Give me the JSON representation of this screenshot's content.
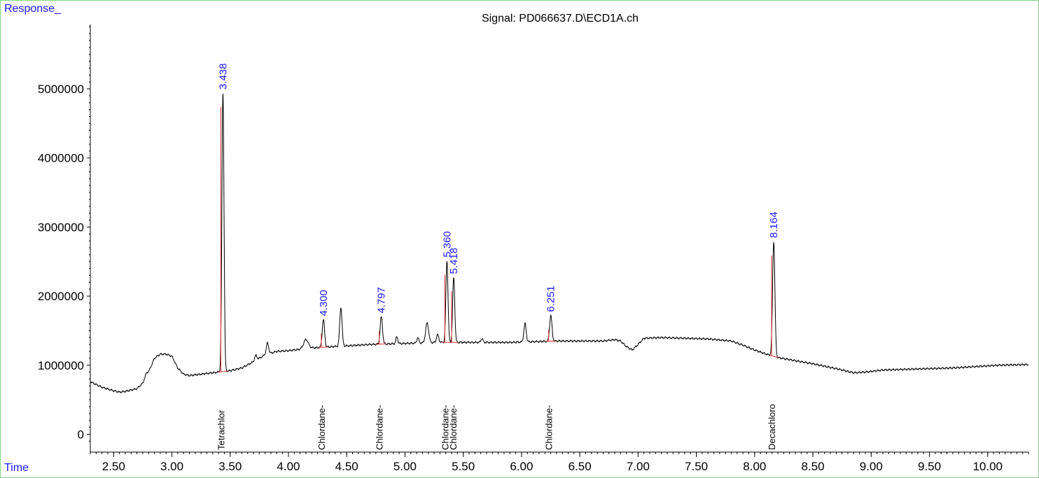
{
  "chart_data": {
    "type": "line",
    "title": "Signal: PD066637.D\\ECD1A.ch",
    "ylabel": "Response_",
    "xlabel": "Time",
    "xlim": [
      2.3,
      10.35
    ],
    "ylim": [
      -150000,
      6000000
    ],
    "xticks": [
      "2.50",
      "3.00",
      "3.50",
      "4.00",
      "4.50",
      "5.00",
      "5.50",
      "6.00",
      "6.50",
      "7.00",
      "7.50",
      "8.00",
      "8.50",
      "9.00",
      "9.50",
      "10.00"
    ],
    "yticks": [
      "0",
      "1000000",
      "2000000",
      "3000000",
      "4000000",
      "5000000"
    ],
    "baseline": [
      [
        2.3,
        760000
      ],
      [
        2.4,
        680000
      ],
      [
        2.5,
        630000
      ],
      [
        2.55,
        610000
      ],
      [
        2.6,
        620000
      ],
      [
        2.65,
        640000
      ],
      [
        2.7,
        660000
      ],
      [
        2.75,
        740000
      ],
      [
        2.8,
        900000
      ],
      [
        2.85,
        1100000
      ],
      [
        2.9,
        1160000
      ],
      [
        2.95,
        1160000
      ],
      [
        3.0,
        1130000
      ],
      [
        3.05,
        960000
      ],
      [
        3.1,
        870000
      ],
      [
        3.15,
        850000
      ],
      [
        3.2,
        860000
      ],
      [
        3.3,
        880000
      ],
      [
        3.4,
        900000
      ],
      [
        3.5,
        920000
      ],
      [
        3.6,
        960000
      ],
      [
        3.7,
        1050000
      ],
      [
        3.8,
        1150000
      ],
      [
        3.9,
        1200000
      ],
      [
        4.0,
        1210000
      ],
      [
        4.1,
        1230000
      ],
      [
        4.2,
        1250000
      ],
      [
        4.3,
        1260000
      ],
      [
        4.5,
        1280000
      ],
      [
        4.7,
        1300000
      ],
      [
        4.9,
        1310000
      ],
      [
        5.1,
        1320000
      ],
      [
        5.3,
        1330000
      ],
      [
        5.5,
        1330000
      ],
      [
        5.7,
        1330000
      ],
      [
        5.9,
        1330000
      ],
      [
        6.1,
        1340000
      ],
      [
        6.3,
        1350000
      ],
      [
        6.5,
        1350000
      ],
      [
        6.7,
        1350000
      ],
      [
        6.8,
        1370000
      ],
      [
        6.85,
        1350000
      ],
      [
        6.9,
        1270000
      ],
      [
        6.95,
        1220000
      ],
      [
        7.0,
        1300000
      ],
      [
        7.05,
        1390000
      ],
      [
        7.2,
        1400000
      ],
      [
        7.4,
        1390000
      ],
      [
        7.6,
        1380000
      ],
      [
        7.8,
        1350000
      ],
      [
        7.9,
        1290000
      ],
      [
        8.0,
        1220000
      ],
      [
        8.1,
        1160000
      ],
      [
        8.2,
        1110000
      ],
      [
        8.3,
        1080000
      ],
      [
        8.5,
        1020000
      ],
      [
        8.7,
        950000
      ],
      [
        8.85,
        890000
      ],
      [
        8.95,
        900000
      ],
      [
        9.1,
        930000
      ],
      [
        9.3,
        940000
      ],
      [
        9.5,
        950000
      ],
      [
        9.7,
        960000
      ],
      [
        9.9,
        980000
      ],
      [
        10.1,
        1000000
      ],
      [
        10.35,
        1010000
      ]
    ],
    "peaks": [
      {
        "rt": 2.78,
        "height": 880000,
        "width": 0.012
      },
      {
        "rt": 3.438,
        "height": 4940000,
        "width": 0.009,
        "label": "3.438",
        "compound": "Tetrachlor"
      },
      {
        "rt": 3.72,
        "height": 1140000,
        "width": 0.01
      },
      {
        "rt": 3.82,
        "height": 1320000,
        "width": 0.01
      },
      {
        "rt": 4.15,
        "height": 1370000,
        "width": 0.02
      },
      {
        "rt": 4.3,
        "height": 1660000,
        "width": 0.01,
        "label": "4.300",
        "compound": "Chlordane-"
      },
      {
        "rt": 4.45,
        "height": 1830000,
        "width": 0.01
      },
      {
        "rt": 4.797,
        "height": 1700000,
        "width": 0.01,
        "label": "4.797",
        "compound": "Chlordane-"
      },
      {
        "rt": 4.93,
        "height": 1410000,
        "width": 0.008
      },
      {
        "rt": 5.11,
        "height": 1400000,
        "width": 0.008
      },
      {
        "rt": 5.19,
        "height": 1610000,
        "width": 0.013
      },
      {
        "rt": 5.28,
        "height": 1440000,
        "width": 0.01
      },
      {
        "rt": 5.36,
        "height": 2510000,
        "width": 0.009,
        "label": "5.360",
        "compound": "Chlordane-"
      },
      {
        "rt": 5.418,
        "height": 2270000,
        "width": 0.009,
        "label": "5.418",
        "compound": "Chlordane-"
      },
      {
        "rt": 5.66,
        "height": 1390000,
        "width": 0.008
      },
      {
        "rt": 6.03,
        "height": 1600000,
        "width": 0.01
      },
      {
        "rt": 6.251,
        "height": 1720000,
        "width": 0.01,
        "label": "6.251",
        "compound": "Chlordane-"
      },
      {
        "rt": 8.164,
        "height": 2790000,
        "width": 0.01,
        "label": "8.164",
        "compound": "Decachloro"
      }
    ]
  }
}
